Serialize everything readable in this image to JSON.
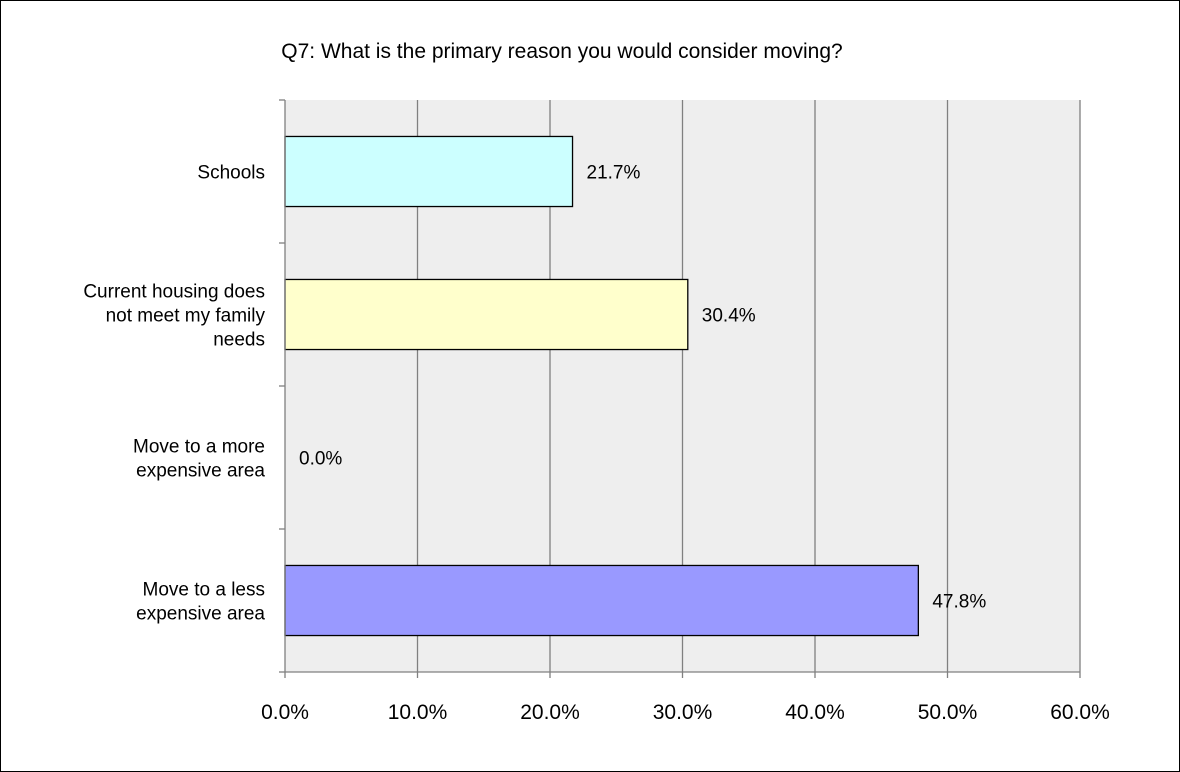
{
  "chart_data": {
    "type": "bar",
    "orientation": "horizontal",
    "title": "Q7: What is the primary reason you would consider moving?",
    "categories": [
      [
        "Schools"
      ],
      [
        "Current housing does",
        "not meet my family",
        "needs"
      ],
      [
        "Move to a more",
        "expensive area"
      ],
      [
        "Move to a less",
        "expensive area"
      ]
    ],
    "values": [
      21.7,
      30.4,
      0.0,
      47.8
    ],
    "value_labels": [
      "21.7%",
      "30.4%",
      "0.0%",
      "47.8%"
    ],
    "colors": [
      "#ccffff",
      "#ffffcc",
      "#ccccff",
      "#9999ff"
    ],
    "xlim": [
      0,
      60
    ],
    "xticks": [
      0,
      10,
      20,
      30,
      40,
      50,
      60
    ],
    "xtick_labels": [
      "0.0%",
      "10.0%",
      "20.0%",
      "30.0%",
      "40.0%",
      "50.0%",
      "60.0%"
    ],
    "plot_background": "#eeeeee",
    "gridlines": "vertical",
    "legend": "none"
  }
}
